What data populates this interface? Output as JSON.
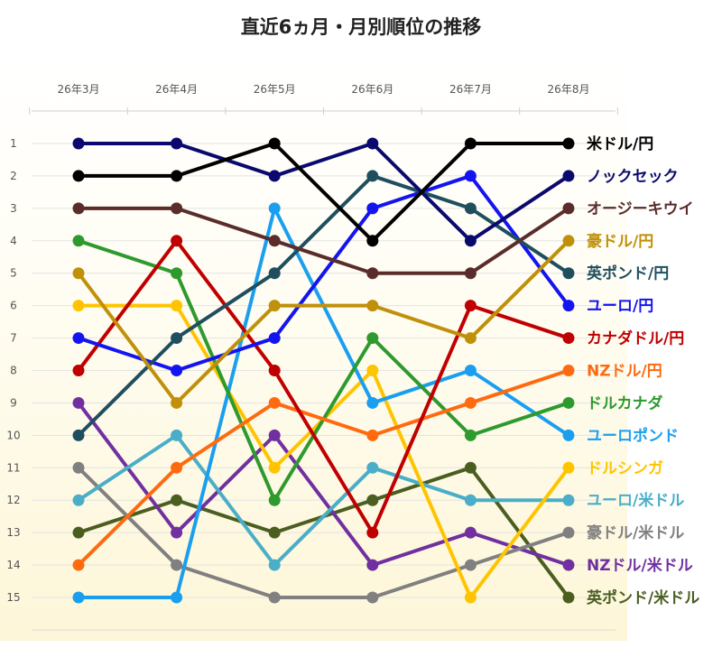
{
  "title": "直近6ヵ月・月別順位の推移",
  "chart_data": {
    "type": "line",
    "title": "直近6ヵ月・月別順位の推移",
    "categories": [
      "26年3月",
      "26年4月",
      "26年5月",
      "26年6月",
      "26年7月",
      "26年8月"
    ],
    "y_ticks": [
      "1",
      "2",
      "3",
      "4",
      "5",
      "6",
      "7",
      "8",
      "9",
      "10",
      "11",
      "12",
      "13",
      "14",
      "15"
    ],
    "ylim": [
      1,
      15
    ],
    "y_inverted": true,
    "grid": "horizontal",
    "legend_placement": "right",
    "series": [
      {
        "name": "米ドル/円",
        "color": "#000000",
        "values": [
          2,
          2,
          1,
          4,
          1,
          1
        ]
      },
      {
        "name": "ノックセック",
        "color": "#0a0a6e",
        "values": [
          1,
          1,
          2,
          1,
          4,
          2
        ]
      },
      {
        "name": "オージーキウイ",
        "color": "#5a2d2a",
        "values": [
          3,
          3,
          4,
          5,
          5,
          3
        ]
      },
      {
        "name": "豪ドル/円",
        "color": "#c0900a",
        "values": [
          5,
          9,
          6,
          6,
          7,
          4
        ]
      },
      {
        "name": "英ポンド/円",
        "color": "#1f4f5f",
        "values": [
          10,
          7,
          5,
          2,
          3,
          5
        ]
      },
      {
        "name": "ユーロ/円",
        "color": "#1414f0",
        "values": [
          7,
          8,
          7,
          3,
          2,
          6
        ]
      },
      {
        "name": "カナダドル/円",
        "color": "#c00000",
        "values": [
          8,
          4,
          8,
          13,
          6,
          7
        ]
      },
      {
        "name": "NZドル/円",
        "color": "#ff6a10",
        "values": [
          14,
          11,
          9,
          10,
          9,
          8
        ]
      },
      {
        "name": "ドルカナダ",
        "color": "#2e9a2e",
        "values": [
          4,
          5,
          12,
          7,
          10,
          9
        ]
      },
      {
        "name": "ユーロポンド",
        "color": "#1a9ff0",
        "values": [
          15,
          15,
          3,
          9,
          8,
          10
        ]
      },
      {
        "name": "ドルシンガ",
        "color": "#ffc400",
        "values": [
          6,
          6,
          11,
          8,
          15,
          11
        ]
      },
      {
        "name": "ユーロ/米ドル",
        "color": "#4aaec8",
        "values": [
          12,
          10,
          14,
          11,
          12,
          12
        ]
      },
      {
        "name": "豪ドル/米ドル",
        "color": "#808080",
        "values": [
          11,
          14,
          15,
          15,
          14,
          13
        ]
      },
      {
        "name": "NZドル/米ドル",
        "color": "#7030a0",
        "values": [
          9,
          13,
          10,
          14,
          13,
          14
        ]
      },
      {
        "name": "英ポンド/米ドル",
        "color": "#4a5e20",
        "values": [
          13,
          12,
          13,
          12,
          11,
          15
        ]
      }
    ]
  }
}
